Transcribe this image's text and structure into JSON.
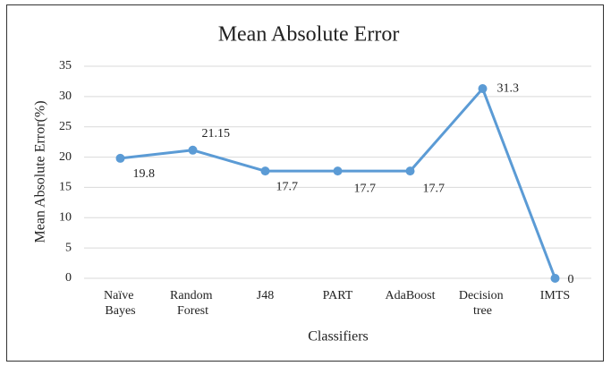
{
  "chart_data": {
    "type": "line",
    "title": "Mean Absolute  Error",
    "xlabel": "Classifiers",
    "ylabel": "Mean Absolute Error(%)",
    "categories": [
      "Naïve Bayes",
      "Random Forest",
      "J48",
      "PART",
      "AdaBoost",
      "Decision tree",
      "IMTS"
    ],
    "series": [
      {
        "name": "Mean Absolute Error",
        "color": "#5b9bd5",
        "values": [
          19.8,
          21.15,
          17.7,
          17.7,
          17.7,
          31.3,
          0
        ]
      }
    ],
    "ylim": [
      0,
      35
    ],
    "yticks": [
      0,
      5,
      10,
      15,
      20,
      25,
      30,
      35
    ],
    "grid": true
  }
}
